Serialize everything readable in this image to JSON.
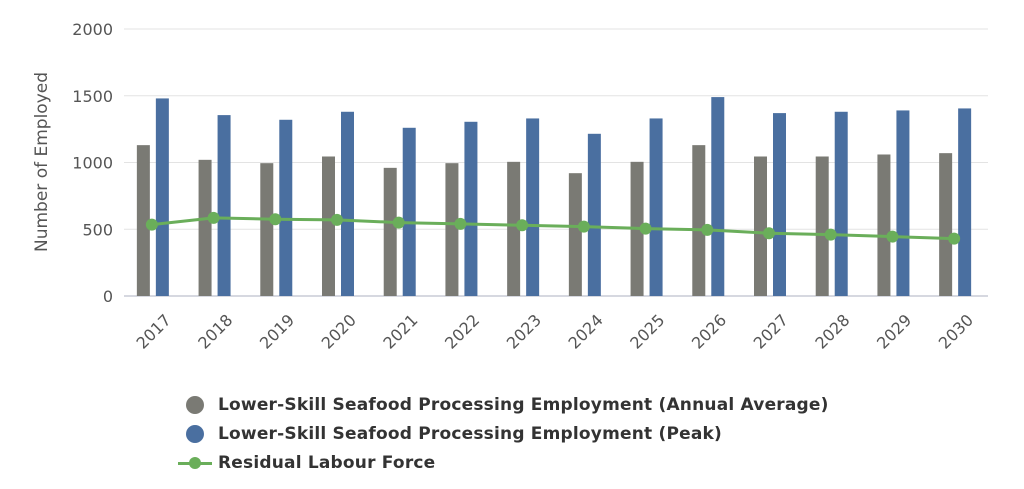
{
  "chart_data": {
    "type": "bar",
    "ylabel": "Number of Employed",
    "xlabel": "",
    "ylim": [
      0,
      2000
    ],
    "yticks": [
      0,
      500,
      1000,
      1500,
      2000
    ],
    "grid": true,
    "legend_position": "bottom-left",
    "categories": [
      "2017",
      "2018",
      "2019",
      "2020",
      "2021",
      "2022",
      "2023",
      "2024",
      "2025",
      "2026",
      "2027",
      "2028",
      "2029",
      "2030"
    ],
    "series": [
      {
        "name": "Lower-Skill Seafood Processing Employment (Annual Average)",
        "kind": "bar",
        "color": "#7a7a74",
        "values": [
          1130,
          1020,
          995,
          1045,
          960,
          995,
          1005,
          920,
          1005,
          1130,
          1045,
          1045,
          1060,
          1070
        ]
      },
      {
        "name": "Lower-Skill Seafood Processing Employment (Peak)",
        "kind": "bar",
        "color": "#4a6fa0",
        "values": [
          1480,
          1355,
          1320,
          1380,
          1260,
          1305,
          1330,
          1215,
          1330,
          1490,
          1370,
          1380,
          1390,
          1405
        ]
      },
      {
        "name": "Residual Labour Force",
        "kind": "line",
        "color": "#6aae5a",
        "values": [
          535,
          585,
          575,
          570,
          550,
          540,
          530,
          520,
          505,
          495,
          470,
          460,
          445,
          430
        ]
      }
    ]
  }
}
